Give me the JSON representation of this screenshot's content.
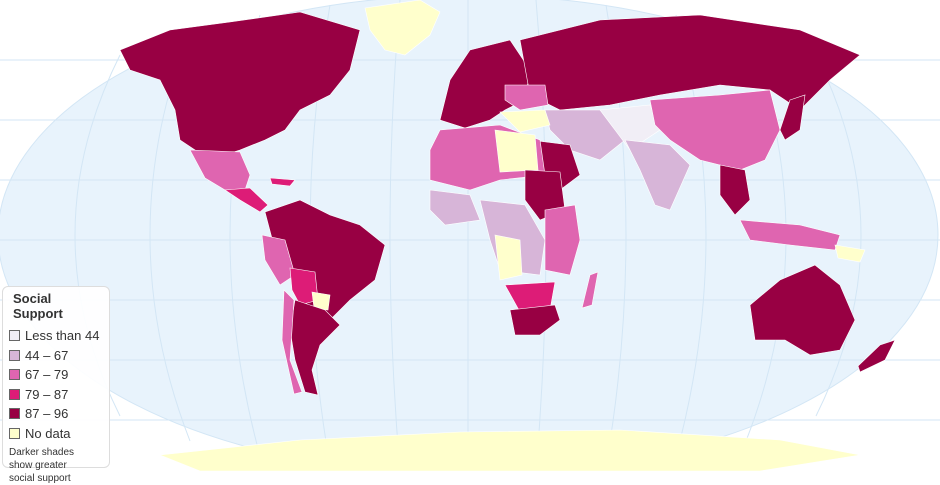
{
  "legend": {
    "title": "Social Support",
    "items": [
      {
        "label": "Less than 44",
        "color": "#f1eef6"
      },
      {
        "label": "44 – 67",
        "color": "#d7b5d8"
      },
      {
        "label": "67 – 79",
        "color": "#df65b0"
      },
      {
        "label": "79 – 87",
        "color": "#dd1c77"
      },
      {
        "label": "87 – 96",
        "color": "#980043"
      },
      {
        "label": "No data",
        "color": "#ffffcc"
      }
    ],
    "note_lines": [
      "Darker shades",
      "show greater",
      "social support"
    ]
  },
  "colors": {
    "ocean": "#e8f3fc",
    "graticule": "#d3e6f5",
    "border": "#ffffff"
  }
}
